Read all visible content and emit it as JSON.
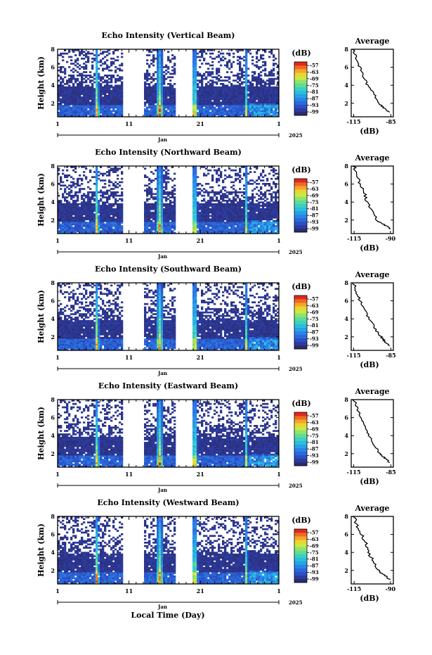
{
  "figure": {
    "xlabel": "Local Time (Day)"
  },
  "chart_data": [
    {
      "type": "heatmap",
      "title": "Echo Intensity (Vertical Beam)",
      "ylabel": "Height (km)",
      "xticks": [
        "1",
        "11",
        "21",
        "1"
      ],
      "ylim": [
        0.5,
        8
      ],
      "yticks": [
        "2",
        "4",
        "6",
        "8"
      ],
      "month_label": "Jan",
      "year_label": "2025",
      "colorbar": {
        "unit": "(dB)",
        "ticks": [
          "-57",
          "-63",
          "-69",
          "-75",
          "-81",
          "-87",
          "-93",
          "-99"
        ]
      },
      "average": {
        "title": "Average",
        "xlabel": "(dB)",
        "xticks": [
          "-115",
          "-85"
        ],
        "xlim": [
          -117,
          -83
        ],
        "yticks": [
          "2",
          "4",
          "6",
          "8"
        ],
        "profile": [
          {
            "h": 8,
            "db": -115
          },
          {
            "h": 7,
            "db": -113
          },
          {
            "h": 6,
            "db": -110
          },
          {
            "h": 5,
            "db": -107
          },
          {
            "h": 4,
            "db": -104
          },
          {
            "h": 3,
            "db": -99
          },
          {
            "h": 2,
            "db": -94
          },
          {
            "h": 1.5,
            "db": -91
          },
          {
            "h": 1,
            "db": -86
          }
        ]
      }
    },
    {
      "type": "heatmap",
      "title": "Echo Intensity (Northward Beam)",
      "ylabel": "Height (km)",
      "xticks": [
        "1",
        "11",
        "21",
        "1"
      ],
      "ylim": [
        0.5,
        8
      ],
      "yticks": [
        "2",
        "4",
        "6",
        "8"
      ],
      "month_label": "Jan",
      "year_label": "2025",
      "colorbar": {
        "unit": "(dB)",
        "ticks": [
          "-57",
          "-63",
          "-69",
          "-75",
          "-81",
          "-87",
          "-93",
          "-99"
        ]
      },
      "average": {
        "title": "Average",
        "xlabel": "(dB)",
        "xticks": [
          "-115",
          "-90"
        ],
        "xlim": [
          -117,
          -88
        ],
        "yticks": [
          "2",
          "4",
          "6",
          "8"
        ],
        "profile": [
          {
            "h": 8,
            "db": -115
          },
          {
            "h": 7,
            "db": -113
          },
          {
            "h": 6,
            "db": -111
          },
          {
            "h": 5,
            "db": -108
          },
          {
            "h": 4,
            "db": -106
          },
          {
            "h": 3,
            "db": -103
          },
          {
            "h": 2,
            "db": -99
          },
          {
            "h": 1.5,
            "db": -95
          },
          {
            "h": 1,
            "db": -90
          }
        ]
      }
    },
    {
      "type": "heatmap",
      "title": "Echo Intensity (Southward Beam)",
      "ylabel": "Height (km)",
      "xticks": [
        "1",
        "11",
        "21",
        "1"
      ],
      "ylim": [
        0.5,
        8
      ],
      "yticks": [
        "2",
        "4",
        "6",
        "8"
      ],
      "month_label": "Jan",
      "year_label": "2025",
      "colorbar": {
        "unit": "(dB)",
        "ticks": [
          "-57",
          "-63",
          "-69",
          "-75",
          "-81",
          "-87",
          "-93",
          "-99"
        ]
      },
      "average": {
        "title": "Average",
        "xlabel": "(dB)",
        "xticks": [
          "-115",
          "-85"
        ],
        "xlim": [
          -117,
          -83
        ],
        "yticks": [
          "2",
          "4",
          "6",
          "8"
        ],
        "profile": [
          {
            "h": 8,
            "db": -115
          },
          {
            "h": 7,
            "db": -113
          },
          {
            "h": 6,
            "db": -110
          },
          {
            "h": 5,
            "db": -106
          },
          {
            "h": 4,
            "db": -103
          },
          {
            "h": 3,
            "db": -98
          },
          {
            "h": 2,
            "db": -93
          },
          {
            "h": 1.5,
            "db": -90
          },
          {
            "h": 1,
            "db": -86
          }
        ]
      }
    },
    {
      "type": "heatmap",
      "title": "Echo Intensity (Eastward Beam)",
      "ylabel": "Height (km)",
      "xticks": [
        "1",
        "11",
        "21",
        "1"
      ],
      "ylim": [
        0.5,
        8
      ],
      "yticks": [
        "2",
        "4",
        "6",
        "8"
      ],
      "month_label": "Jan",
      "year_label": "2025",
      "colorbar": {
        "unit": "(dB)",
        "ticks": [
          "-57",
          "-63",
          "-69",
          "-75",
          "-81",
          "-87",
          "-93",
          "-99"
        ]
      },
      "average": {
        "title": "Average",
        "xlabel": "(dB)",
        "xticks": [
          "-115",
          "-85"
        ],
        "xlim": [
          -117,
          -83
        ],
        "yticks": [
          "2",
          "4",
          "6",
          "8"
        ],
        "profile": [
          {
            "h": 8,
            "db": -115
          },
          {
            "h": 7,
            "db": -112
          },
          {
            "h": 6,
            "db": -109
          },
          {
            "h": 5,
            "db": -106
          },
          {
            "h": 4,
            "db": -103
          },
          {
            "h": 3,
            "db": -99
          },
          {
            "h": 2,
            "db": -94
          },
          {
            "h": 1.5,
            "db": -90
          },
          {
            "h": 1,
            "db": -86
          }
        ]
      }
    },
    {
      "type": "heatmap",
      "title": "Echo Intensity (Westward Beam)",
      "ylabel": "Height (km)",
      "xticks": [
        "1",
        "11",
        "21",
        "1"
      ],
      "ylim": [
        0.5,
        8
      ],
      "yticks": [
        "2",
        "4",
        "6",
        "8"
      ],
      "month_label": "Jan",
      "year_label": "2025",
      "colorbar": {
        "unit": "(dB)",
        "ticks": [
          "-57",
          "-63",
          "-69",
          "-75",
          "-81",
          "-87",
          "-93",
          "-99"
        ]
      },
      "average": {
        "title": "Average",
        "xlabel": "(dB)",
        "xticks": [
          "-115",
          "-90"
        ],
        "xlim": [
          -117,
          -88
        ],
        "yticks": [
          "2",
          "4",
          "6",
          "8"
        ],
        "profile": [
          {
            "h": 8,
            "db": -115
          },
          {
            "h": 7,
            "db": -113
          },
          {
            "h": 6,
            "db": -110
          },
          {
            "h": 5,
            "db": -107
          },
          {
            "h": 4,
            "db": -105
          },
          {
            "h": 3,
            "db": -102
          },
          {
            "h": 2,
            "db": -98
          },
          {
            "h": 1.5,
            "db": -95
          },
          {
            "h": 1,
            "db": -90
          }
        ]
      }
    }
  ]
}
